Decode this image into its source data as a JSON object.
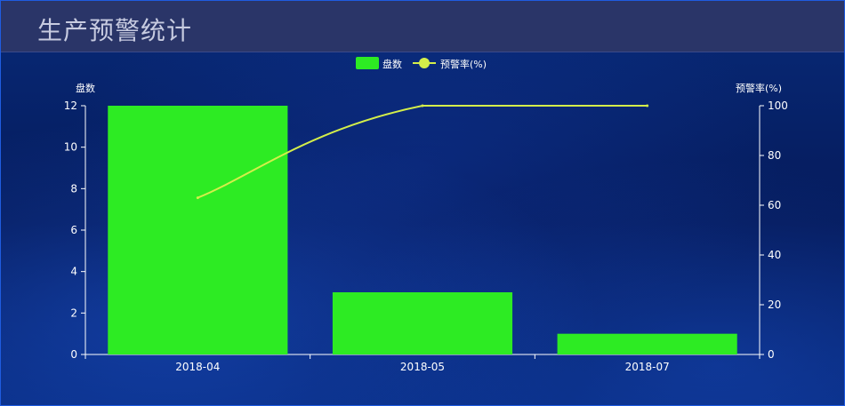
{
  "header": {
    "title": "生产预警统计"
  },
  "chart_data": {
    "type": "bar",
    "categories": [
      "2018-04",
      "2018-05",
      "2018-07"
    ],
    "series": [
      {
        "name": "盘数",
        "type": "bar",
        "axis": "left",
        "color": "#2deb23",
        "values": [
          12,
          3,
          1
        ]
      },
      {
        "name": "预警率(%)",
        "type": "line",
        "axis": "right",
        "color": "#d4ee4a",
        "values": [
          63,
          100,
          100
        ]
      }
    ],
    "ylabel_left": "盘数",
    "ylabel_right": "预警率(%)",
    "ylim_left": [
      0,
      12
    ],
    "yticks_left": [
      0,
      2,
      4,
      6,
      8,
      10,
      12
    ],
    "ylim_right": [
      0,
      100
    ],
    "yticks_right": [
      0,
      20,
      40,
      60,
      80,
      100
    ],
    "legend_position": "top-center",
    "grid": false
  }
}
